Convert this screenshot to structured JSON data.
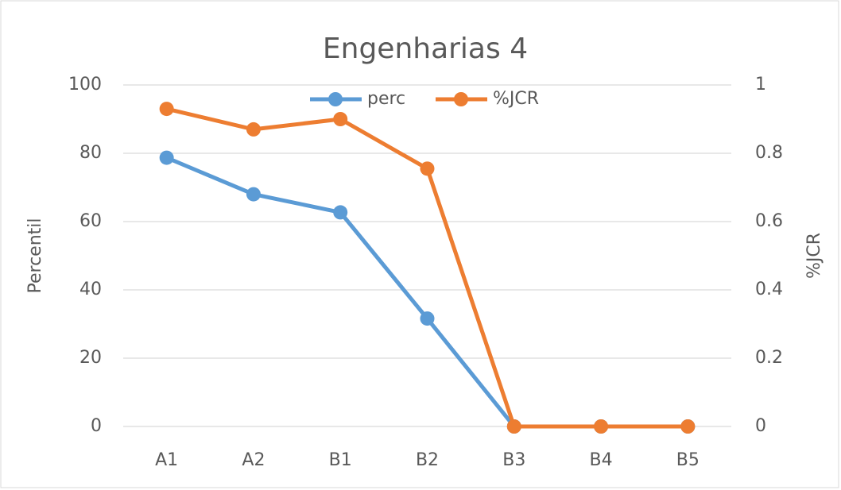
{
  "chart_data": {
    "type": "line",
    "title": "Engenharias 4",
    "categories": [
      "A1",
      "A2",
      "B1",
      "B2",
      "B3",
      "B4",
      "B5"
    ],
    "series": [
      {
        "name": "perc",
        "color": "#5b9bd5",
        "values": [
          78.7,
          68,
          62.7,
          31.6,
          0,
          0,
          0
        ]
      },
      {
        "name": "%JCR",
        "color": "#ed7d31",
        "axis": "y2",
        "values": [
          0.93,
          0.87,
          0.9,
          0.755,
          0,
          0,
          0
        ]
      }
    ],
    "ylabel": "Percentil",
    "y2label": "%JCR",
    "ylim": [
      0,
      100
    ],
    "yticks": [
      0,
      20,
      40,
      60,
      80,
      100
    ],
    "y2lim": [
      0,
      1
    ],
    "y2ticks": [
      0,
      0.2,
      0.4,
      0.6,
      0.8,
      1
    ],
    "grid": true,
    "legend": "top"
  }
}
